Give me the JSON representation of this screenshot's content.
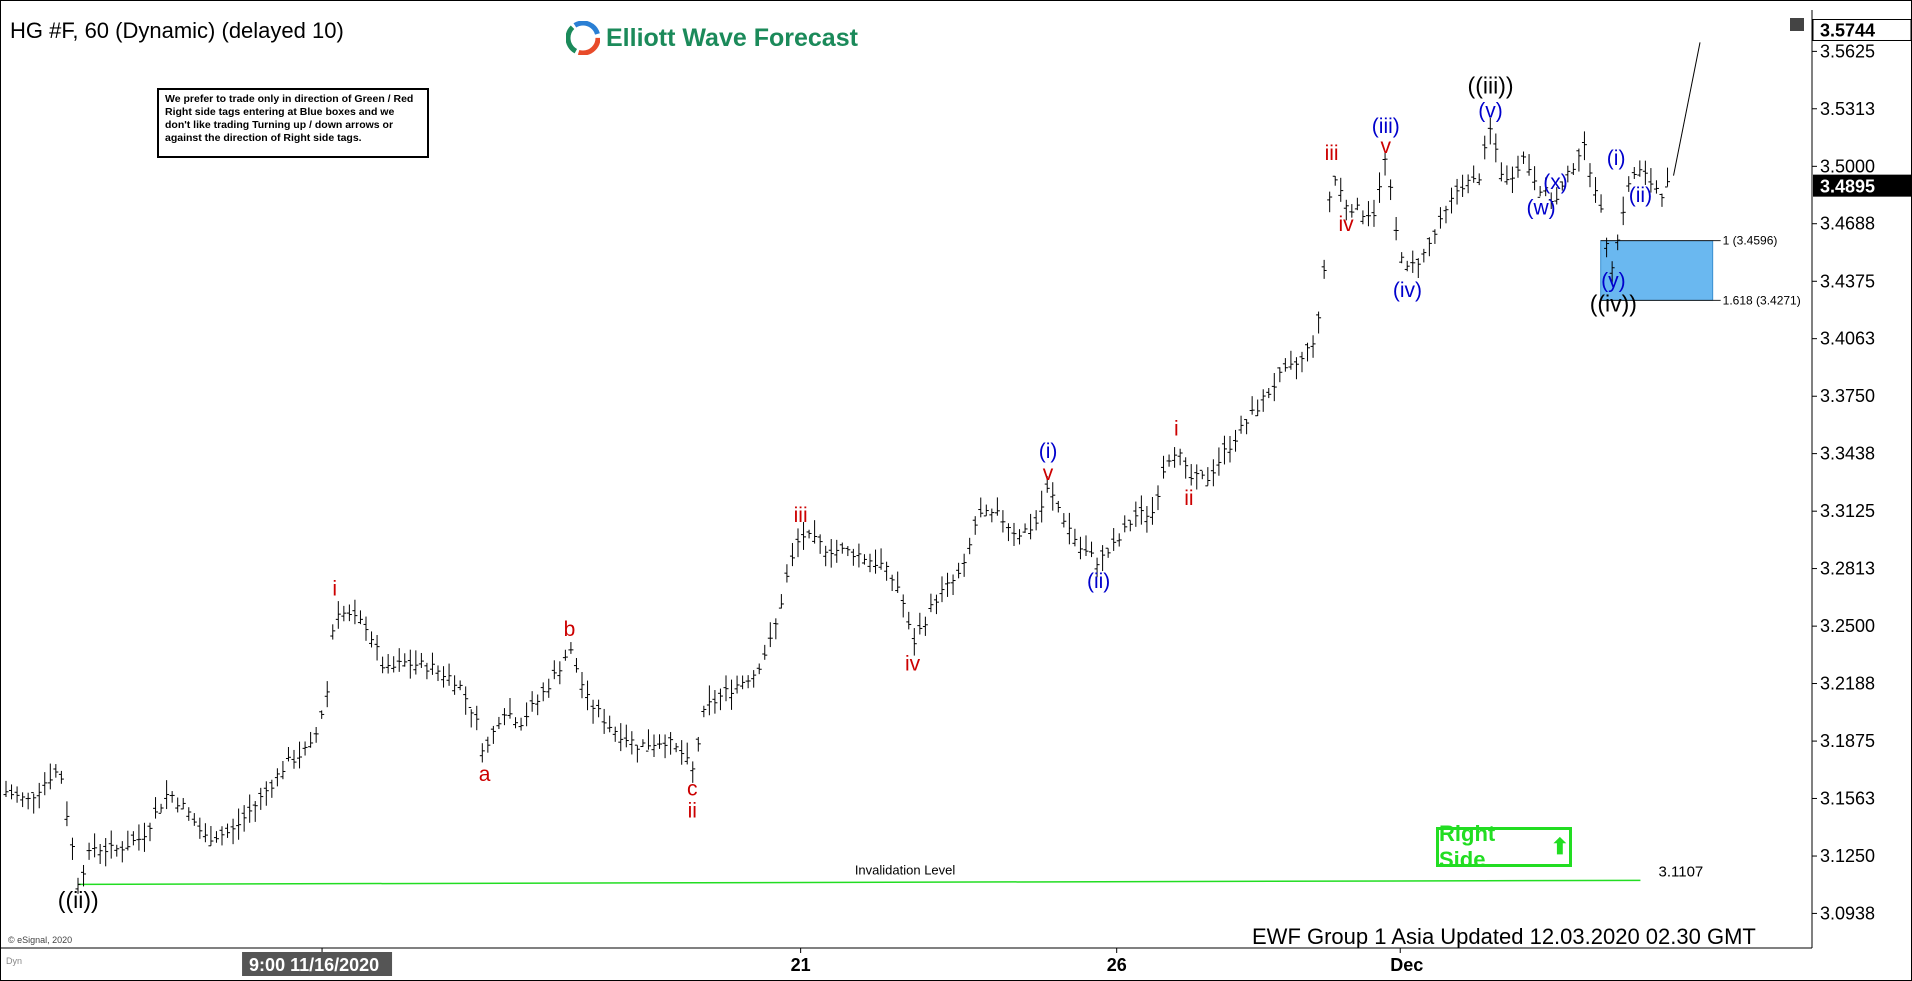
{
  "header": {
    "symbol": "HG #F, 60 (Dynamic) (delayed 10)",
    "brand": "Elliott Wave Forecast",
    "note": "We prefer to trade only in direction of Green / Red Right side tags entering at Blue boxes and we don't like trading Turning up / down arrows or against the direction of Right side tags."
  },
  "footer": {
    "updated": "EWF Group 1 Asia Updated 12.03.2020 02.30 GMT",
    "copyright": "© eSignal, 2020",
    "dyn": "Dyn"
  },
  "right_side": {
    "label": "Right Side",
    "color": "#22dd22"
  },
  "chart_data": {
    "type": "line",
    "ylim": [
      3.075,
      3.585
    ],
    "x_ticks": [
      {
        "label": "9:00 11/16/2020",
        "x": 0.175,
        "highlight": true
      },
      {
        "label": "21",
        "x": 0.44
      },
      {
        "label": "26",
        "x": 0.615
      },
      {
        "label": "Dec",
        "x": 0.772
      }
    ],
    "y_ticks": [
      "3.5625",
      "3.5313",
      "3.5000",
      "3.4688",
      "3.4375",
      "3.4063",
      "3.3750",
      "3.3438",
      "3.3125",
      "3.2813",
      "3.2500",
      "3.2188",
      "3.1875",
      "3.1563",
      "3.1250",
      "3.0938"
    ],
    "last_price": "3.4895",
    "top_price": "3.5744",
    "price_path": [
      [
        0.0,
        3.16
      ],
      [
        0.012,
        3.155
      ],
      [
        0.024,
        3.168
      ],
      [
        0.03,
        3.172
      ],
      [
        0.035,
        3.14
      ],
      [
        0.04,
        3.111
      ],
      [
        0.048,
        3.13
      ],
      [
        0.06,
        3.128
      ],
      [
        0.075,
        3.135
      ],
      [
        0.09,
        3.16
      ],
      [
        0.1,
        3.15
      ],
      [
        0.11,
        3.135
      ],
      [
        0.125,
        3.138
      ],
      [
        0.14,
        3.155
      ],
      [
        0.155,
        3.175
      ],
      [
        0.17,
        3.185
      ],
      [
        0.178,
        3.215
      ],
      [
        0.182,
        3.26
      ],
      [
        0.19,
        3.255
      ],
      [
        0.2,
        3.25
      ],
      [
        0.21,
        3.225
      ],
      [
        0.22,
        3.23
      ],
      [
        0.235,
        3.228
      ],
      [
        0.25,
        3.22
      ],
      [
        0.26,
        3.2
      ],
      [
        0.265,
        3.18
      ],
      [
        0.275,
        3.205
      ],
      [
        0.285,
        3.198
      ],
      [
        0.295,
        3.21
      ],
      [
        0.305,
        3.225
      ],
      [
        0.312,
        3.238
      ],
      [
        0.322,
        3.21
      ],
      [
        0.335,
        3.195
      ],
      [
        0.35,
        3.185
      ],
      [
        0.365,
        3.188
      ],
      [
        0.375,
        3.18
      ],
      [
        0.38,
        3.17
      ],
      [
        0.387,
        3.205
      ],
      [
        0.4,
        3.215
      ],
      [
        0.415,
        3.225
      ],
      [
        0.425,
        3.245
      ],
      [
        0.432,
        3.275
      ],
      [
        0.44,
        3.3
      ],
      [
        0.455,
        3.292
      ],
      [
        0.47,
        3.29
      ],
      [
        0.485,
        3.283
      ],
      [
        0.495,
        3.27
      ],
      [
        0.502,
        3.24
      ],
      [
        0.515,
        3.265
      ],
      [
        0.53,
        3.28
      ],
      [
        0.538,
        3.31
      ],
      [
        0.55,
        3.31
      ],
      [
        0.56,
        3.3
      ],
      [
        0.57,
        3.305
      ],
      [
        0.577,
        3.325
      ],
      [
        0.585,
        3.31
      ],
      [
        0.595,
        3.292
      ],
      [
        0.605,
        3.285
      ],
      [
        0.615,
        3.295
      ],
      [
        0.625,
        3.31
      ],
      [
        0.635,
        3.312
      ],
      [
        0.642,
        3.34
      ],
      [
        0.648,
        3.347
      ],
      [
        0.655,
        3.33
      ],
      [
        0.665,
        3.33
      ],
      [
        0.675,
        3.345
      ],
      [
        0.69,
        3.365
      ],
      [
        0.705,
        3.385
      ],
      [
        0.718,
        3.395
      ],
      [
        0.725,
        3.408
      ],
      [
        0.728,
        3.42
      ],
      [
        0.734,
        3.497
      ],
      [
        0.742,
        3.48
      ],
      [
        0.75,
        3.475
      ],
      [
        0.758,
        3.475
      ],
      [
        0.764,
        3.505
      ],
      [
        0.77,
        3.462
      ],
      [
        0.776,
        3.443
      ],
      [
        0.785,
        3.452
      ],
      [
        0.795,
        3.47
      ],
      [
        0.805,
        3.49
      ],
      [
        0.815,
        3.492
      ],
      [
        0.822,
        3.52
      ],
      [
        0.83,
        3.49
      ],
      [
        0.84,
        3.505
      ],
      [
        0.85,
        3.488
      ],
      [
        0.858,
        3.48
      ],
      [
        0.866,
        3.497
      ],
      [
        0.873,
        3.512
      ],
      [
        0.88,
        3.49
      ],
      [
        0.885,
        3.465
      ],
      [
        0.89,
        3.445
      ],
      [
        0.895,
        3.475
      ],
      [
        0.9,
        3.495
      ],
      [
        0.905,
        3.497
      ],
      [
        0.912,
        3.49
      ],
      [
        0.918,
        3.485
      ],
      [
        0.92,
        3.4895
      ]
    ],
    "projection": [
      [
        0.92,
        3.4895
      ],
      [
        0.938,
        3.575
      ]
    ],
    "blue_box": {
      "x": [
        0.883,
        0.945
      ],
      "y": [
        3.4271,
        3.4596
      ],
      "color": "#6ab8f0"
    },
    "fib_levels": [
      {
        "label": "1 (3.4596)",
        "y": 3.4596
      },
      {
        "label": "1.618 (3.4271)",
        "y": 3.4271
      }
    ],
    "invalidation": {
      "label": "Invalidation Level",
      "value_label": "3.1107",
      "y": 3.1107,
      "color": "#22dd22"
    },
    "wave_labels": [
      {
        "text": "((ii))",
        "x": 0.04,
        "y": 3.111,
        "color": "#000000"
      },
      {
        "text": "i",
        "x": 0.182,
        "y": 3.26,
        "color": "#cc0000"
      },
      {
        "text": "a",
        "x": 0.265,
        "y": 3.18,
        "color": "#cc0000"
      },
      {
        "text": "b",
        "x": 0.312,
        "y": 3.238,
        "color": "#cc0000"
      },
      {
        "text": "c",
        "x": 0.38,
        "y": 3.17,
        "color": "#cc0000"
      },
      {
        "text": "ii",
        "x": 0.38,
        "y": 3.17,
        "color": "#cc0000"
      },
      {
        "text": "iii",
        "x": 0.44,
        "y": 3.3,
        "color": "#cc0000"
      },
      {
        "text": "iv",
        "x": 0.502,
        "y": 3.24,
        "color": "#cc0000"
      },
      {
        "text": "(i)",
        "x": 0.577,
        "y": 3.325,
        "color": "#0000cc"
      },
      {
        "text": "v",
        "x": 0.577,
        "y": 3.325,
        "color": "#cc0000"
      },
      {
        "text": "(ii)",
        "x": 0.605,
        "y": 3.285,
        "color": "#0000cc"
      },
      {
        "text": "i",
        "x": 0.648,
        "y": 3.347,
        "color": "#cc0000"
      },
      {
        "text": "ii",
        "x": 0.655,
        "y": 3.33,
        "color": "#cc0000"
      },
      {
        "text": "iii",
        "x": 0.734,
        "y": 3.497,
        "color": "#cc0000"
      },
      {
        "text": "iv",
        "x": 0.742,
        "y": 3.48,
        "color": "#cc0000"
      },
      {
        "text": "(iii)",
        "x": 0.764,
        "y": 3.505,
        "color": "#0000cc"
      },
      {
        "text": "v",
        "x": 0.764,
        "y": 3.505,
        "color": "#cc0000"
      },
      {
        "text": "(iv)",
        "x": 0.776,
        "y": 3.443,
        "color": "#0000cc"
      },
      {
        "text": "((iii))",
        "x": 0.822,
        "y": 3.52,
        "color": "#000000"
      },
      {
        "text": "(v)",
        "x": 0.822,
        "y": 3.52,
        "color": "#0000cc"
      },
      {
        "text": "(w)",
        "x": 0.85,
        "y": 3.488,
        "color": "#0000cc"
      },
      {
        "text": "(x)",
        "x": 0.858,
        "y": 3.48,
        "color": "#0000cc"
      },
      {
        "text": "(i)",
        "x": 0.886,
        "y": 3.492,
        "color": "#0000cc"
      },
      {
        "text": "(ii)",
        "x": 0.905,
        "y": 3.497,
        "color": "#0000cc"
      },
      {
        "text": "(y)",
        "x": 0.89,
        "y": 3.445,
        "color": "#0000cc"
      },
      {
        "text": "((iv))",
        "x": 0.89,
        "y": 3.445,
        "color": "#000000"
      }
    ]
  }
}
